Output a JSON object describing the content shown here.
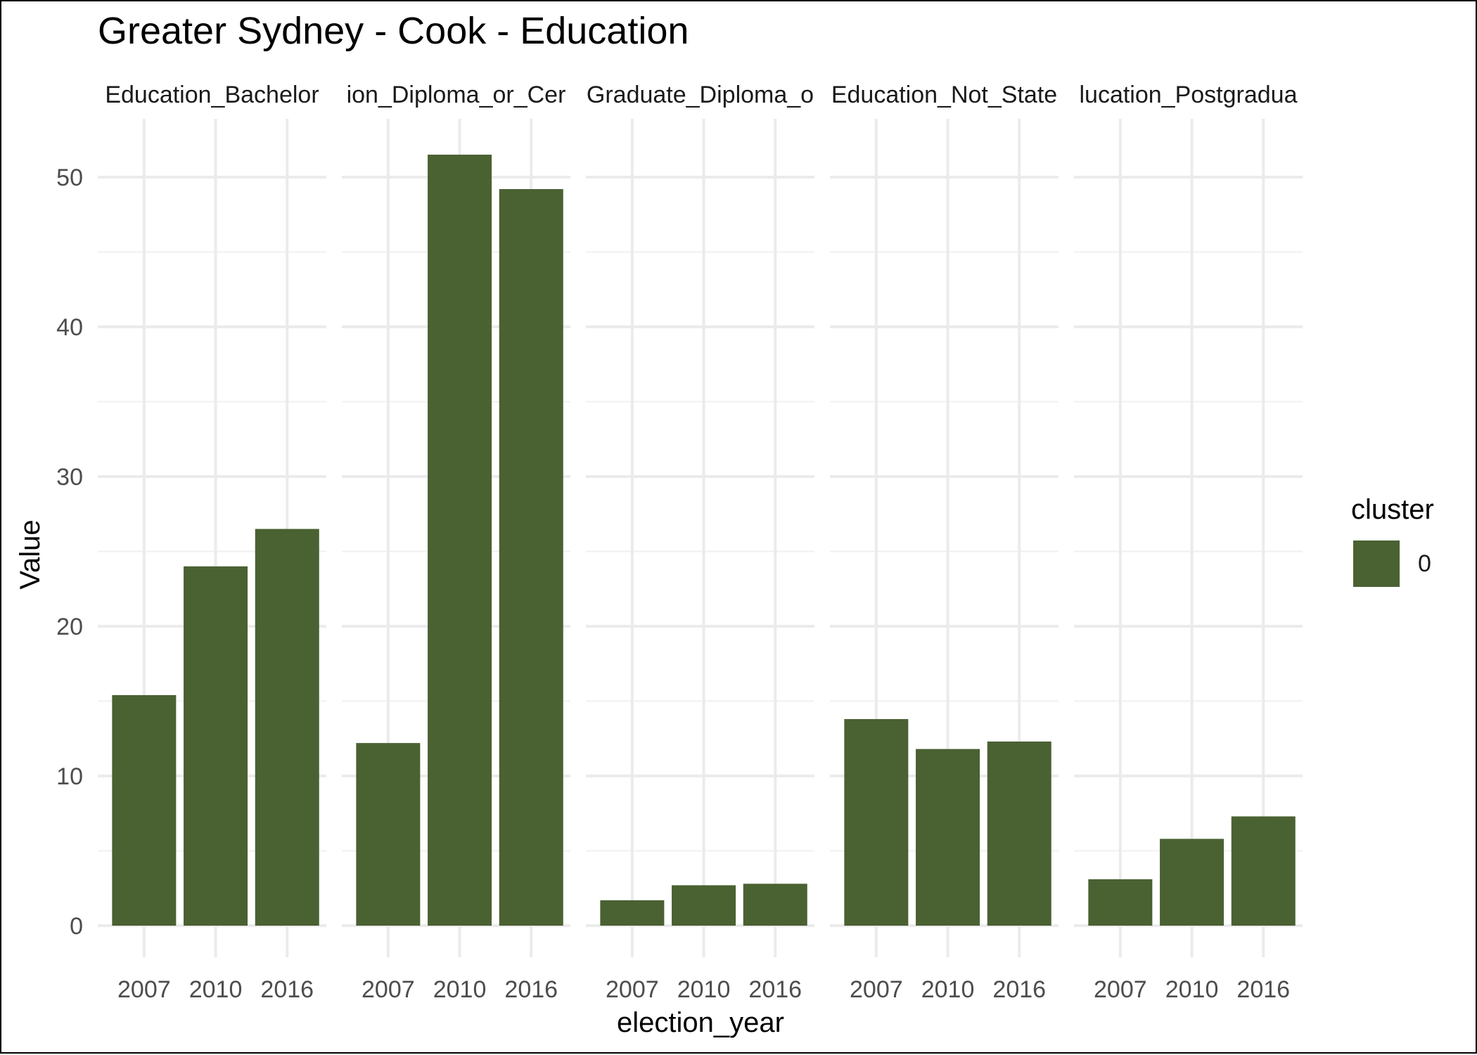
{
  "chart_data": {
    "type": "bar",
    "title": "Greater Sydney - Cook - Education",
    "xlabel": "election_year",
    "ylabel": "Value",
    "ylim": [
      0,
      54
    ],
    "yticks": [
      0,
      10,
      20,
      30,
      40,
      50
    ],
    "categories": [
      "2007",
      "2010",
      "2016"
    ],
    "bar_color": "#4a6132",
    "grid": true,
    "legend": {
      "title": "cluster",
      "placement": "right",
      "entries": [
        {
          "label": "0",
          "color": "#4a6132"
        }
      ]
    },
    "facets": [
      {
        "label": "Education_Bachelor",
        "values": [
          15.4,
          24.0,
          26.5
        ]
      },
      {
        "label": "ion_Diploma_or_Cer",
        "values": [
          12.2,
          51.5,
          49.2
        ]
      },
      {
        "label": "Graduate_Diploma_o",
        "values": [
          1.7,
          2.7,
          2.8
        ]
      },
      {
        "label": "Education_Not_State",
        "values": [
          13.8,
          11.8,
          12.3
        ]
      },
      {
        "label": "lucation_Postgradua",
        "values": [
          3.1,
          5.8,
          7.3
        ]
      }
    ]
  }
}
